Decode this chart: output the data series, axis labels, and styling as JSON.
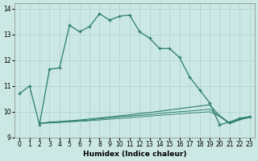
{
  "xlabel": "Humidex (Indice chaleur)",
  "background_color": "#cce8e4",
  "grid_color": "#aad0cc",
  "line_color": "#2a7d6e",
  "xlim": [
    -0.5,
    23.5
  ],
  "ylim": [
    9.0,
    14.2
  ],
  "yticks": [
    9,
    10,
    11,
    12,
    13,
    14
  ],
  "xticks": [
    0,
    1,
    2,
    3,
    4,
    5,
    6,
    7,
    8,
    9,
    10,
    11,
    12,
    13,
    14,
    15,
    16,
    17,
    18,
    19,
    20,
    21,
    22,
    23
  ],
  "curve1_x": [
    0,
    1,
    2,
    3,
    4,
    5,
    6,
    7,
    8,
    9,
    10,
    11,
    12,
    13,
    14,
    15,
    16,
    17,
    18,
    19,
    20,
    21,
    22,
    23
  ],
  "curve1_y": [
    10.7,
    11.0,
    9.5,
    11.65,
    11.7,
    13.35,
    13.1,
    13.3,
    13.8,
    13.55,
    13.7,
    13.75,
    13.1,
    12.85,
    12.45,
    12.45,
    12.1,
    11.35,
    10.85,
    10.35,
    9.5,
    9.6,
    9.75,
    9.8
  ],
  "flat1_x": [
    2,
    3,
    4,
    5,
    6,
    7,
    8,
    9,
    10,
    11,
    12,
    13,
    14,
    15,
    16,
    17,
    18,
    19,
    20,
    21,
    22,
    23
  ],
  "flat1_y": [
    9.55,
    9.6,
    9.62,
    9.65,
    9.68,
    9.72,
    9.76,
    9.8,
    9.84,
    9.88,
    9.93,
    9.97,
    10.02,
    10.07,
    10.12,
    10.17,
    10.22,
    10.27,
    9.85,
    9.57,
    9.72,
    9.82
  ],
  "flat2_x": [
    2,
    3,
    4,
    5,
    6,
    7,
    8,
    9,
    10,
    11,
    12,
    13,
    14,
    15,
    16,
    17,
    18,
    19,
    20,
    21,
    22,
    23
  ],
  "flat2_y": [
    9.55,
    9.57,
    9.59,
    9.62,
    9.65,
    9.68,
    9.72,
    9.76,
    9.8,
    9.83,
    9.86,
    9.89,
    9.93,
    9.97,
    10.0,
    10.03,
    10.06,
    10.1,
    9.83,
    9.55,
    9.7,
    9.8
  ],
  "flat3_x": [
    2,
    3,
    4,
    5,
    6,
    7,
    8,
    9,
    10,
    11,
    12,
    13,
    14,
    15,
    16,
    17,
    18,
    19,
    20,
    21,
    22,
    23
  ],
  "flat3_y": [
    9.55,
    9.57,
    9.59,
    9.61,
    9.63,
    9.65,
    9.68,
    9.71,
    9.74,
    9.77,
    9.8,
    9.83,
    9.86,
    9.89,
    9.92,
    9.95,
    9.97,
    10.0,
    9.82,
    9.54,
    9.68,
    9.78
  ]
}
